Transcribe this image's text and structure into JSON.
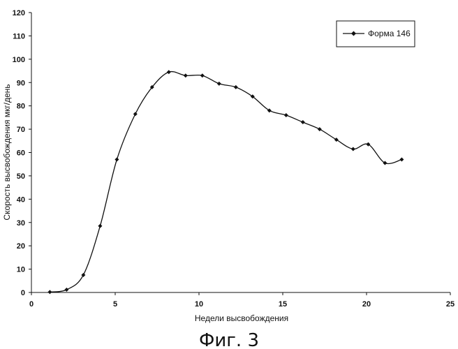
{
  "chart_data": {
    "type": "line",
    "title": "",
    "xlabel": "Недели высвобождения",
    "ylabel": "Скорость высвобождения мкг/день",
    "xlim": [
      0,
      25
    ],
    "ylim": [
      0,
      120
    ],
    "xticks": [
      0,
      5,
      10,
      15,
      20,
      25
    ],
    "yticks": [
      0,
      10,
      20,
      30,
      40,
      50,
      60,
      70,
      80,
      90,
      100,
      110,
      120
    ],
    "grid": false,
    "legend_position": "top-right",
    "series": [
      {
        "name": "Форма 146",
        "color": "#111111",
        "marker": "diamond",
        "x": [
          1.1,
          2.1,
          3.1,
          4.1,
          5.1,
          6.2,
          7.2,
          8.2,
          9.2,
          10.2,
          11.2,
          12.2,
          13.2,
          14.2,
          15.2,
          16.2,
          17.2,
          18.2,
          19.2,
          20.1,
          21.1,
          22.1
        ],
        "y": [
          0.2,
          1.2,
          7.5,
          28.5,
          57,
          76.5,
          88,
          94.5,
          93,
          93,
          89.5,
          88,
          84,
          78,
          76,
          73,
          70,
          65.5,
          61.5,
          63.5,
          55.5,
          57
        ]
      }
    ]
  },
  "caption": "Фиг. 3"
}
